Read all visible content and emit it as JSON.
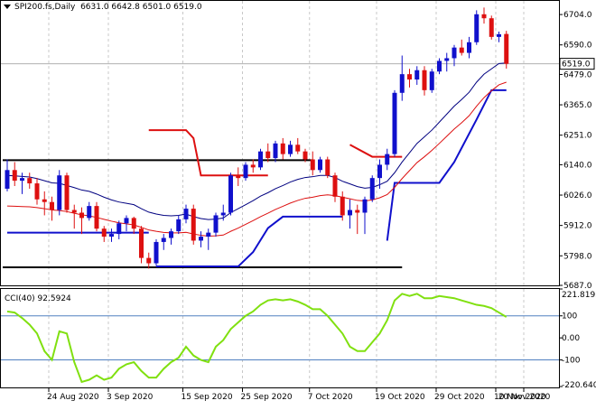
{
  "header": {
    "symbol": "SPI200.fs,Daily",
    "ohlc": "6631.0 6642.8 6501.0 6519.0"
  },
  "indicator": {
    "label": "CCI(40) 92.5924"
  },
  "price_axis": {
    "ticks": [
      "6704.0",
      "6590.0",
      "6479.0",
      "6365.0",
      "6251.0",
      "6140.0",
      "6026.0",
      "5912.0",
      "5798.0",
      "5687.0"
    ],
    "current": "6519.0"
  },
  "cci_axis": {
    "ticks": [
      "221.8193",
      "100",
      "0.00",
      "-100",
      "-220.640"
    ]
  },
  "date_axis": {
    "ticks": [
      "24 Aug 2020",
      "3 Sep 2020",
      "15 Sep 2020",
      "25 Sep 2020",
      "7 Oct 2020",
      "19 Oct 2020",
      "29 Oct 2020",
      "10 Nov 2020",
      "20 Nov 2020"
    ]
  },
  "colors": {
    "bull": "#1010cc",
    "bear": "#dd1010",
    "ema_fast": "#000080",
    "ema_slow": "#dd1010",
    "stop_blue": "#1010cc",
    "stop_red": "#dd1010",
    "cci": "#80e010",
    "grid": "#c8c8c8"
  },
  "chart_data": [
    {
      "type": "candlestick",
      "title": "SPI200.fs,Daily",
      "ylim": [
        5687,
        6745
      ],
      "bars": [
        [
          6050,
          6160,
          6040,
          6120
        ],
        [
          6120,
          6150,
          6060,
          6080
        ],
        [
          6080,
          6110,
          6030,
          6090
        ],
        [
          6090,
          6110,
          6050,
          6070
        ],
        [
          6070,
          6090,
          5990,
          6010
        ],
        [
          6010,
          6040,
          5950,
          6000
        ],
        [
          6000,
          6020,
          5930,
          5970
        ],
        [
          5970,
          6120,
          5950,
          6100
        ],
        [
          6100,
          6110,
          5960,
          5970
        ],
        [
          5970,
          5990,
          5900,
          5960
        ],
        [
          5960,
          5980,
          5880,
          5940
        ],
        [
          5940,
          6000,
          5930,
          5985
        ],
        [
          5985,
          6000,
          5890,
          5900
        ],
        [
          5900,
          5910,
          5850,
          5870
        ],
        [
          5870,
          5900,
          5850,
          5880
        ],
        [
          5880,
          5930,
          5860,
          5920
        ],
        [
          5920,
          5950,
          5890,
          5940
        ],
        [
          5940,
          5945,
          5880,
          5900
        ],
        [
          5900,
          5910,
          5770,
          5790
        ],
        [
          5790,
          5810,
          5750,
          5770
        ],
        [
          5770,
          5860,
          5760,
          5850
        ],
        [
          5850,
          5880,
          5820,
          5865
        ],
        [
          5865,
          5900,
          5840,
          5890
        ],
        [
          5890,
          5950,
          5880,
          5935
        ],
        [
          5935,
          5990,
          5920,
          5975
        ],
        [
          5975,
          5990,
          5840,
          5855
        ],
        [
          5855,
          5890,
          5830,
          5870
        ],
        [
          5870,
          5900,
          5820,
          5885
        ],
        [
          5885,
          5960,
          5870,
          5950
        ],
        [
          5950,
          5990,
          5930,
          5960
        ],
        [
          5960,
          6110,
          5950,
          6100
        ],
        [
          6100,
          6130,
          6060,
          6090
        ],
        [
          6090,
          6150,
          6080,
          6140
        ],
        [
          6140,
          6160,
          6110,
          6130
        ],
        [
          6130,
          6200,
          6120,
          6190
        ],
        [
          6190,
          6220,
          6150,
          6165
        ],
        [
          6165,
          6230,
          6150,
          6220
        ],
        [
          6220,
          6240,
          6160,
          6180
        ],
        [
          6180,
          6230,
          6170,
          6215
        ],
        [
          6215,
          6240,
          6180,
          6190
        ],
        [
          6190,
          6200,
          6150,
          6160
        ],
        [
          6160,
          6190,
          6100,
          6120
        ],
        [
          6120,
          6170,
          6110,
          6160
        ],
        [
          6160,
          6170,
          6090,
          6100
        ],
        [
          6100,
          6110,
          6000,
          6020
        ],
        [
          6020,
          6040,
          5930,
          5950
        ],
        [
          5950,
          6010,
          5900,
          5970
        ],
        [
          5970,
          5990,
          5880,
          5960
        ],
        [
          5960,
          6020,
          5880,
          6010
        ],
        [
          6010,
          6100,
          6000,
          6090
        ],
        [
          6090,
          6160,
          6050,
          6140
        ],
        [
          6140,
          6200,
          6120,
          6180
        ],
        [
          6180,
          6420,
          6170,
          6410
        ],
        [
          6410,
          6550,
          6380,
          6480
        ],
        [
          6480,
          6500,
          6430,
          6460
        ],
        [
          6460,
          6510,
          6440,
          6495
        ],
        [
          6495,
          6510,
          6400,
          6420
        ],
        [
          6420,
          6500,
          6410,
          6490
        ],
        [
          6490,
          6540,
          6480,
          6530
        ],
        [
          6530,
          6560,
          6490,
          6540
        ],
        [
          6540,
          6590,
          6510,
          6580
        ],
        [
          6580,
          6610,
          6550,
          6560
        ],
        [
          6560,
          6620,
          6540,
          6600
        ],
        [
          6600,
          6720,
          6590,
          6705
        ],
        [
          6705,
          6730,
          6670,
          6690
        ],
        [
          6690,
          6700,
          6610,
          6620
        ],
        [
          6620,
          6640,
          6600,
          6630
        ],
        [
          6631,
          6642.8,
          6501,
          6519
        ]
      ],
      "overlays": {
        "ema_fast": [
          6100,
          6098,
          6096,
          6094,
          6088,
          6080,
          6072,
          6070,
          6062,
          6054,
          6045,
          6040,
          6030,
          6018,
          6008,
          6000,
          5995,
          5990,
          5975,
          5962,
          5955,
          5950,
          5948,
          5950,
          5955,
          5945,
          5938,
          5934,
          5936,
          5940,
          5960,
          5975,
          5990,
          6005,
          6022,
          6035,
          6050,
          6062,
          6075,
          6085,
          6092,
          6095,
          6100,
          6100,
          6092,
          6078,
          6068,
          6058,
          6052,
          6055,
          6065,
          6078,
          6110,
          6150,
          6185,
          6220,
          6245,
          6270,
          6300,
          6330,
          6360,
          6385,
          6412,
          6450,
          6480,
          6500,
          6520,
          6522
        ],
        "ema_slow": [
          5985,
          5984,
          5983,
          5982,
          5979,
          5975,
          5970,
          5968,
          5964,
          5958,
          5952,
          5948,
          5942,
          5935,
          5928,
          5922,
          5918,
          5914,
          5905,
          5895,
          5890,
          5886,
          5884,
          5884,
          5886,
          5880,
          5875,
          5872,
          5873,
          5876,
          5890,
          5902,
          5916,
          5930,
          5945,
          5958,
          5972,
          5984,
          5996,
          6006,
          6014,
          6018,
          6024,
          6027,
          6024,
          6018,
          6012,
          6006,
          6004,
          6008,
          6016,
          6028,
          6055,
          6088,
          6118,
          6148,
          6170,
          6194,
          6220,
          6247,
          6274,
          6298,
          6324,
          6360,
          6392,
          6418,
          6440,
          6450
        ],
        "stop_blue": [
          [
            [
              0,
              5885
            ],
            [
              19,
              5885
            ]
          ],
          [
            [
              20,
              5758
            ],
            [
              31,
              5758
            ],
            [
              33,
              5812
            ],
            [
              35,
              5902
            ],
            [
              37,
              5945
            ],
            [
              45,
              5945
            ]
          ],
          [
            [
              51,
              5855
            ],
            [
              52,
              6072
            ],
            [
              58,
              6072
            ],
            [
              60,
              6150
            ],
            [
              63,
              6310
            ],
            [
              65,
              6420
            ],
            [
              67,
              6420
            ]
          ]
        ],
        "stop_red": [
          [
            [
              19,
              6270
            ],
            [
              24,
              6270
            ],
            [
              25,
              6240
            ],
            [
              26,
              6100
            ],
            [
              35,
              6100
            ]
          ],
          [
            [
              46,
              6215
            ],
            [
              49,
              6170
            ],
            [
              53,
              6170
            ]
          ]
        ]
      },
      "hlines": [
        {
          "y": 6157,
          "x_end": 41
        },
        {
          "y": 5755,
          "x_end": 53
        }
      ]
    },
    {
      "type": "line",
      "title": "CCI(40) 92.5924",
      "ylim": [
        -220.64,
        221.8193
      ],
      "series": [
        {
          "values": [
            120,
            115,
            90,
            60,
            20,
            -60,
            -100,
            30,
            20,
            -110,
            -200,
            -190,
            -170,
            -190,
            -180,
            -140,
            -120,
            -110,
            -150,
            -180,
            -180,
            -140,
            -110,
            -90,
            -40,
            -80,
            -100,
            -110,
            -40,
            -10,
            40,
            70,
            100,
            120,
            150,
            170,
            175,
            170,
            175,
            165,
            150,
            130,
            130,
            100,
            60,
            20,
            -40,
            -60,
            -60,
            -20,
            20,
            80,
            170,
            200,
            190,
            200,
            180,
            180,
            190,
            185,
            180,
            170,
            160,
            150,
            145,
            135,
            115,
            95
          ]
        }
      ],
      "hlines": [
        100,
        -100
      ]
    }
  ]
}
